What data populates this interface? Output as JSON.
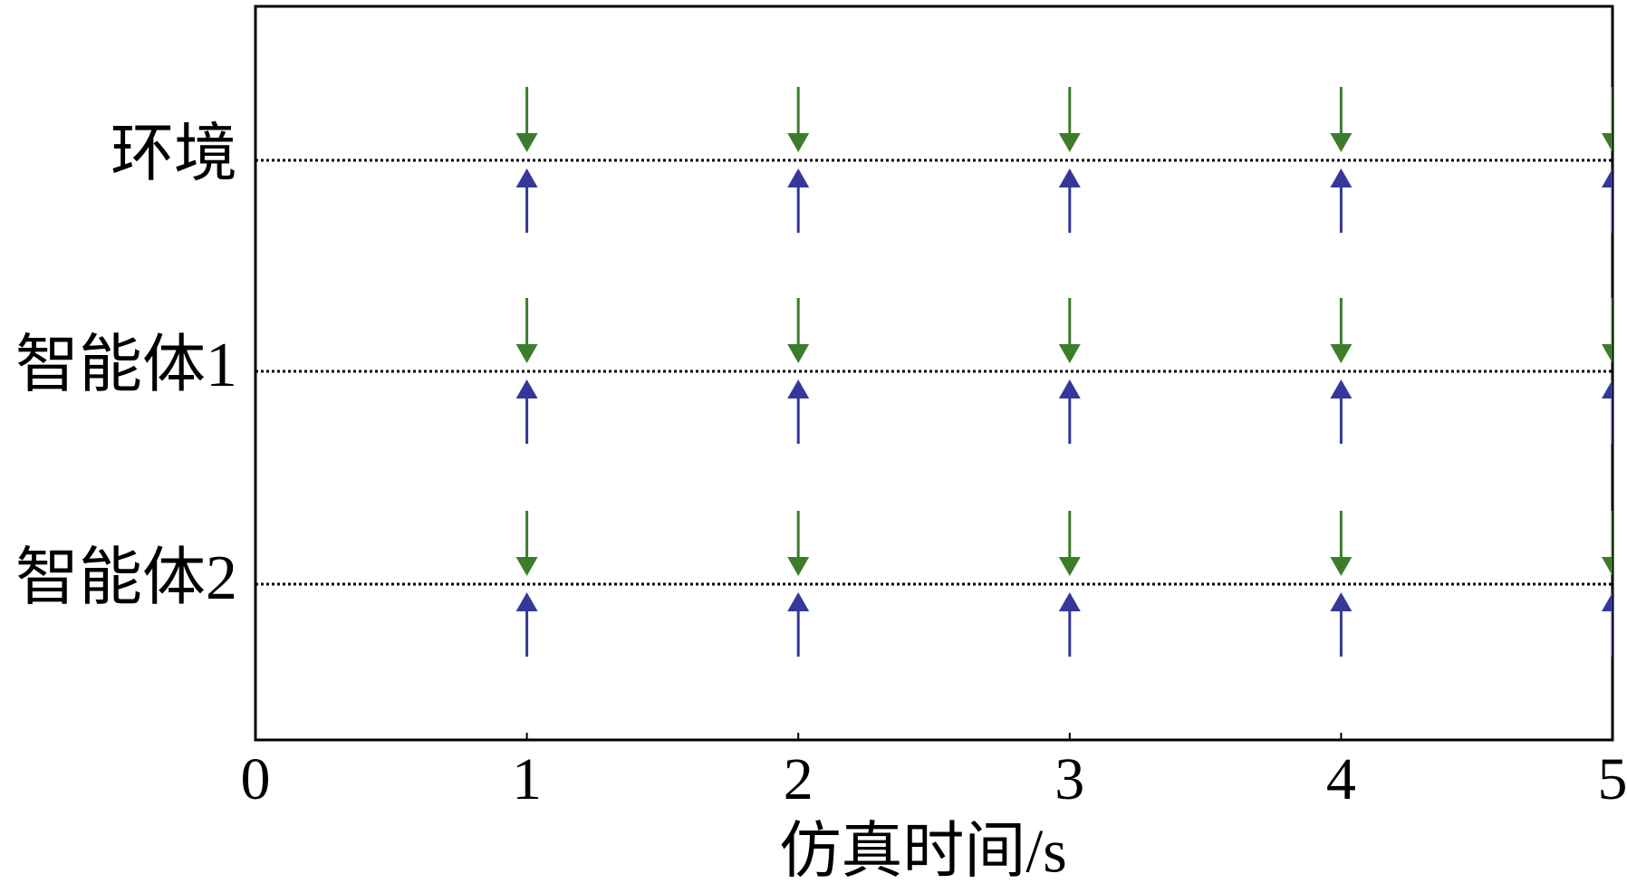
{
  "chart_data": {
    "type": "event",
    "xlabel": "仿真时间/s",
    "categories": [
      "环境",
      "智能体1",
      "智能体2"
    ],
    "events": [
      {
        "down": [
          1,
          2,
          3,
          4,
          5
        ],
        "up": [
          1,
          2,
          3,
          4,
          5
        ]
      },
      {
        "down": [
          1,
          2,
          3,
          4,
          5
        ],
        "up": [
          1,
          2,
          3,
          4,
          5
        ]
      },
      {
        "down": [
          1,
          2,
          3,
          4,
          5
        ],
        "up": [
          1,
          2,
          3,
          4,
          5
        ]
      }
    ],
    "down_color": "#3c7d2c",
    "up_color": "#34389a",
    "xlim": [
      0,
      5
    ],
    "xticks": [
      0,
      1,
      2,
      3,
      4,
      5
    ]
  }
}
